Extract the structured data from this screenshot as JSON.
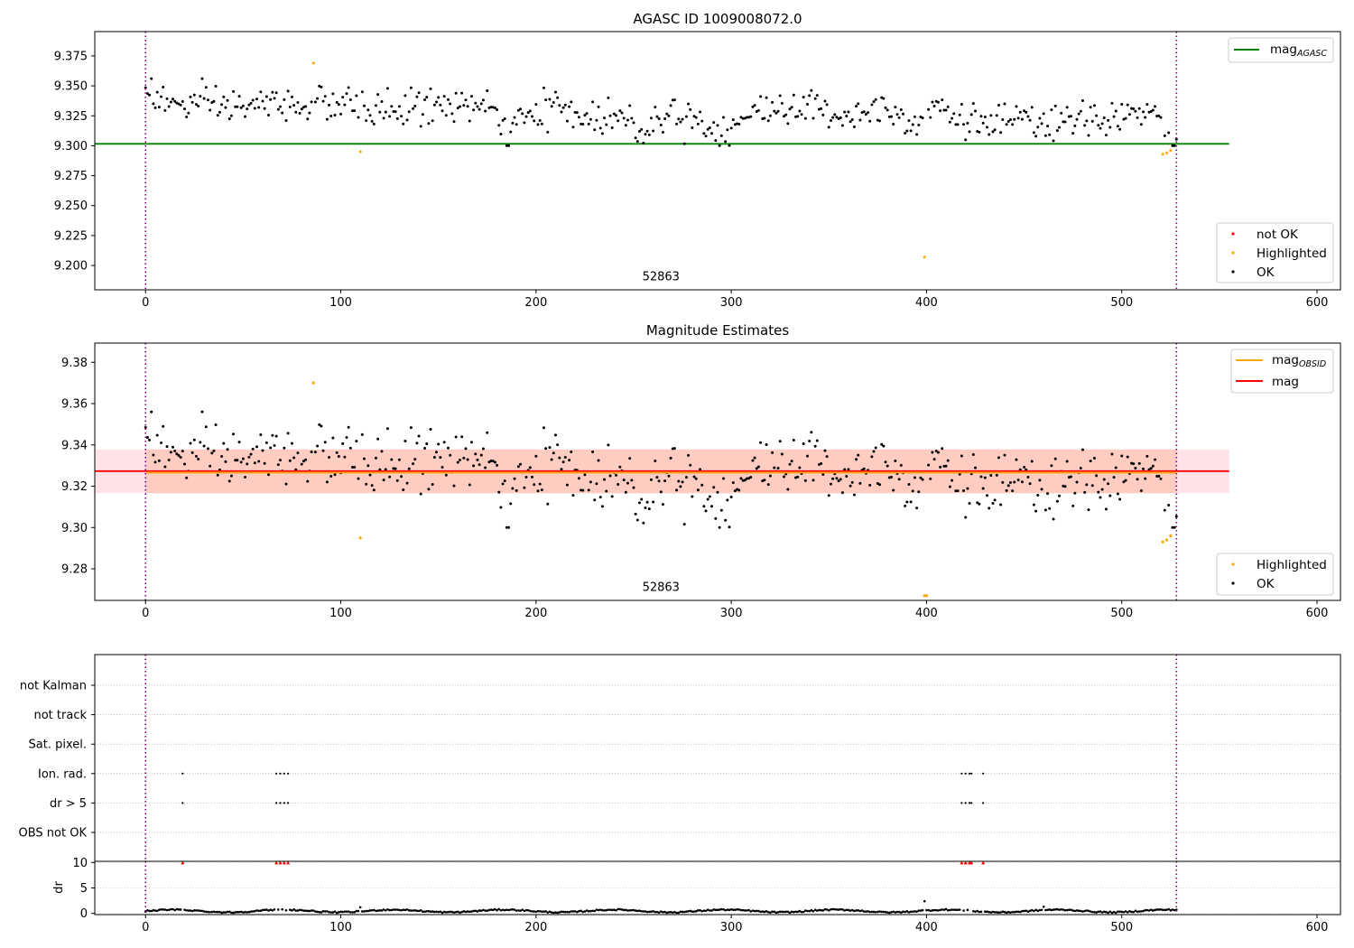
{
  "colors": {
    "ok": "#000000",
    "not_ok": "#ff0000",
    "highlighted": "#ffa500",
    "agasc_line": "#008000",
    "mag_line": "#ff0000",
    "obsid_line": "#ffa500",
    "band_pink": "#ffc0cb",
    "band_orange": "#ffa07a",
    "obs_boundary": "#800080"
  },
  "chart_data": [
    {
      "id": "agasc",
      "type": "scatter",
      "title": "AGASC ID 1009008072.0",
      "xlim": [
        -26,
        612
      ],
      "ylim": [
        9.1797,
        9.3953
      ],
      "xticks": [
        "0",
        "100",
        "200",
        "300",
        "400",
        "500",
        "600"
      ],
      "yticks": [
        "9.200",
        "9.225",
        "9.250",
        "9.275",
        "9.300",
        "9.325",
        "9.350",
        "9.375"
      ],
      "obs_boundaries": [
        0,
        528
      ],
      "annotation": {
        "text": "52863",
        "x": 264,
        "y": 9.1877
      },
      "hlines": [
        {
          "name": "mag_AGASC",
          "label_base": "mag",
          "label_sub": "AGASC",
          "y": 9.3016,
          "x0": -26,
          "x1": 555,
          "color_key": "agasc_line"
        }
      ],
      "highlighted": [
        [
          86,
          9.369
        ],
        [
          110,
          9.295
        ],
        [
          399,
          9.207
        ],
        [
          521,
          9.293
        ],
        [
          523,
          9.294
        ],
        [
          525,
          9.296
        ]
      ],
      "legend_lines": [
        {
          "label_base": "mag",
          "label_sub": "AGASC",
          "color_key": "agasc_line"
        }
      ],
      "legend_markers": [
        {
          "label": "not OK",
          "color_key": "not_ok"
        },
        {
          "label": "Highlighted",
          "color_key": "highlighted"
        },
        {
          "label": "OK",
          "color_key": "ok"
        }
      ]
    },
    {
      "id": "estimates",
      "type": "scatter",
      "title": "Magnitude Estimates",
      "xlim": [
        -26,
        612
      ],
      "ylim": [
        9.2647,
        9.3893
      ],
      "xticks": [
        "0",
        "100",
        "200",
        "300",
        "400",
        "500",
        "600"
      ],
      "yticks": [
        "9.28",
        "9.30",
        "9.32",
        "9.34",
        "9.36",
        "9.38"
      ],
      "obs_boundaries": [
        0,
        528
      ],
      "annotation": {
        "text": "52863",
        "x": 264,
        "y": 9.2693
      },
      "bands": [
        {
          "y0": 9.3166,
          "y1": 9.3378,
          "x0": -26,
          "x1": 555,
          "color_key": "band_pink",
          "opacity": 0.45
        },
        {
          "y0": 9.3166,
          "y1": 9.3378,
          "x0": 0,
          "x1": 528,
          "color_key": "band_orange",
          "opacity": 0.35
        }
      ],
      "hlines": [
        {
          "name": "mag",
          "y": 9.3273,
          "x0": -26,
          "x1": 555,
          "color_key": "mag_line"
        },
        {
          "name": "mag_OBSID",
          "y": 9.3266,
          "x0": 0,
          "x1": 528,
          "color_key": "obsid_line"
        }
      ],
      "highlighted": [
        [
          86,
          9.37
        ],
        [
          110,
          9.295
        ],
        [
          399,
          9.267
        ],
        [
          400,
          9.267
        ],
        [
          521,
          9.293
        ],
        [
          523,
          9.294
        ],
        [
          525,
          9.296
        ]
      ],
      "legend_lines": [
        {
          "label_base": "mag",
          "label_sub": "OBSID",
          "color_key": "obsid_line"
        },
        {
          "label_base": "mag",
          "label_sub": "",
          "color_key": "mag_line"
        }
      ],
      "legend_markers": [
        {
          "label": "Highlighted",
          "color_key": "highlighted"
        },
        {
          "label": "OK",
          "color_key": "ok"
        }
      ]
    },
    {
      "id": "flags",
      "type": "scatter",
      "title": "",
      "xlim": [
        -26,
        612
      ],
      "categories": [
        "OBS not OK",
        "dr > 5",
        "Ion. rad.",
        "Sat. pixel.",
        "not track",
        "not Kalman"
      ],
      "obs_boundaries": [
        0,
        528
      ],
      "flag_x": {
        "dr > 5": [
          19,
          67,
          69,
          71,
          73,
          418,
          420,
          422,
          423,
          429
        ],
        "Ion. rad.": [
          19,
          67,
          69,
          71,
          73,
          418,
          420,
          422,
          423,
          429
        ]
      }
    },
    {
      "id": "dr",
      "type": "scatter",
      "title": "",
      "xlim": [
        -26,
        612
      ],
      "ylim": [
        -0.5,
        10.5
      ],
      "ylabel": "dr",
      "xticks": [
        "0",
        "100",
        "200",
        "300",
        "400",
        "500",
        "600"
      ],
      "yticks": [
        "0",
        "5",
        "10"
      ],
      "obs_boundaries": [
        0,
        528
      ],
      "capped_x": [
        19,
        67,
        69,
        71,
        73,
        418,
        420,
        422,
        423,
        429
      ],
      "capped_value": 10,
      "outliers": [
        [
          399,
          2.4
        ],
        [
          110,
          1.2
        ],
        [
          460,
          1.3
        ]
      ],
      "n_points": 528
    }
  ]
}
